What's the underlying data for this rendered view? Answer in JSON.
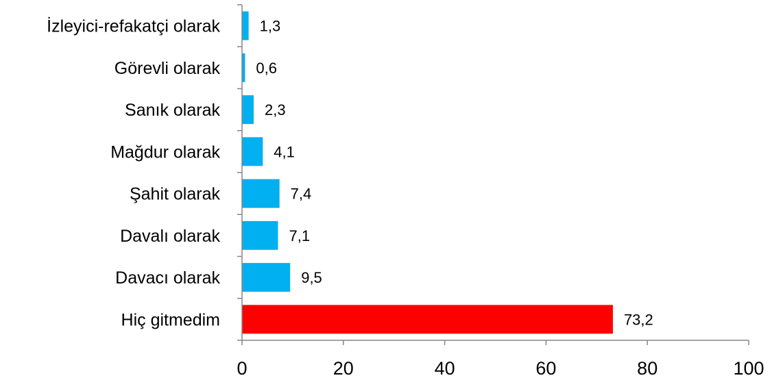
{
  "chart_data": {
    "type": "bar",
    "orientation": "horizontal",
    "categories": [
      "İzleyici-refakatçi olarak",
      "Görevli olarak",
      "Sanık olarak",
      "Mağdur olarak",
      "Şahit olarak",
      "Davalı olarak",
      "Davacı olarak",
      "Hiç gitmedim"
    ],
    "values": [
      1.3,
      0.6,
      2.3,
      4.1,
      7.4,
      7.1,
      9.5,
      73.2
    ],
    "value_labels": [
      "1,3",
      "0,6",
      "2,3",
      "4,1",
      "7,4",
      "7,1",
      "9,5",
      "73,2"
    ],
    "bar_colors": [
      "#00b0f0",
      "#00b0f0",
      "#00b0f0",
      "#00b0f0",
      "#00b0f0",
      "#00b0f0",
      "#00b0f0",
      "#ff0000"
    ],
    "xlim": [
      0,
      100
    ],
    "x_ticks": [
      0,
      20,
      40,
      60,
      80,
      100
    ],
    "x_tick_labels": [
      "0",
      "20",
      "40",
      "60",
      "80",
      "100"
    ],
    "title": "",
    "xlabel": "",
    "ylabel": "",
    "grid": false,
    "legend": "none"
  }
}
